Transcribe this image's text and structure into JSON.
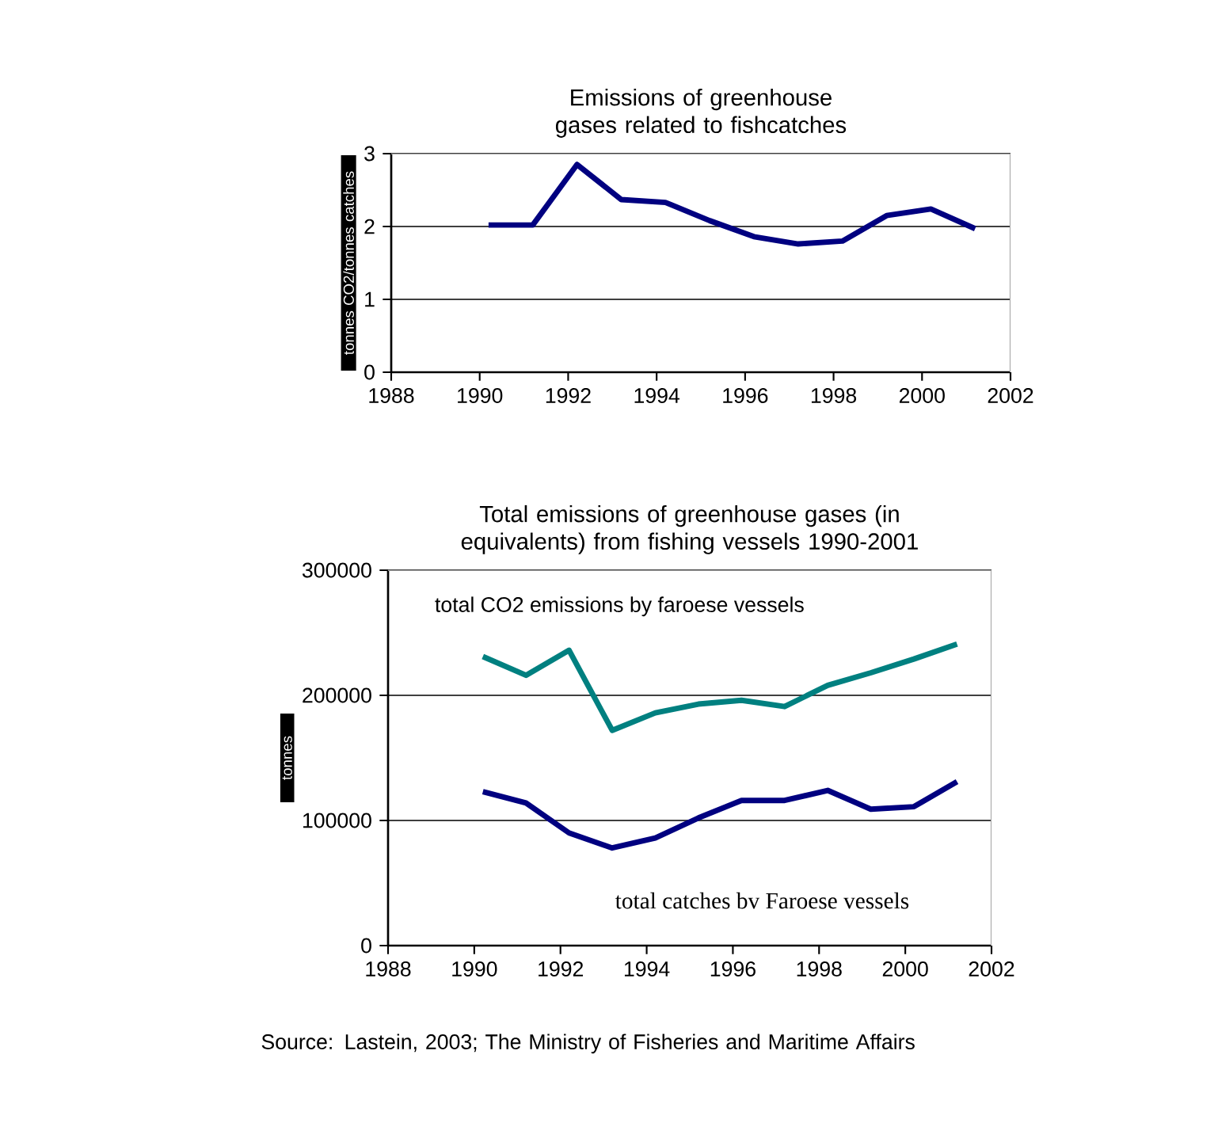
{
  "chart_data": [
    {
      "type": "line",
      "title": "Emissions of greenhouse gases related to fishcatches",
      "ylabel": "tonnes CO2/tonnes catches",
      "x": [
        1990.2,
        1991.2,
        1992.2,
        1993.2,
        1994.2,
        1995.2,
        1996.2,
        1997.2,
        1998.2,
        1999.2,
        2000.2,
        2001.2
      ],
      "series": [
        {
          "color": "#000080",
          "values": [
            2.02,
            2.02,
            2.85,
            2.37,
            2.33,
            2.08,
            1.86,
            1.76,
            1.8,
            2.15,
            2.24,
            1.97
          ]
        }
      ],
      "xlim": [
        1988,
        2002
      ],
      "xticks": [
        1988,
        1990,
        1992,
        1994,
        1996,
        1998,
        2000,
        2002
      ],
      "ylim": [
        0,
        3
      ],
      "yticks": [
        0,
        1,
        2,
        3
      ],
      "grid": "y"
    },
    {
      "type": "line",
      "title": "Total emissions of greenhouse gases (in equivalents)  from fishing vessels 1990-2001",
      "ylabel": "tonnes",
      "x": [
        1990.2,
        1991.2,
        1992.2,
        1993.2,
        1994.2,
        1995.2,
        1996.2,
        1997.2,
        1998.2,
        1999.2,
        2000.2,
        2001.2
      ],
      "series": [
        {
          "name": "total CO2 emissions by faroese vessels",
          "color": "#008080",
          "values": [
            231000,
            216000,
            236000,
            172000,
            186000,
            193000,
            196000,
            191000,
            208000,
            218000,
            229000,
            241000
          ]
        },
        {
          "name": "total catches bv Faroese vessels",
          "color": "#000080",
          "values": [
            123000,
            114000,
            90000,
            78000,
            86000,
            102000,
            116000,
            116000,
            124000,
            109000,
            111000,
            131000
          ]
        }
      ],
      "xlim": [
        1988,
        2002
      ],
      "xticks": [
        1988,
        1990,
        1992,
        1994,
        1996,
        1998,
        2000,
        2002
      ],
      "ylim": [
        0,
        300000
      ],
      "yticks": [
        0,
        100000,
        200000,
        300000
      ],
      "grid": "y",
      "annotations": [
        "Source: Lastein, 2003;  The Ministry of Fisheries and Maritime Affairs"
      ]
    }
  ]
}
